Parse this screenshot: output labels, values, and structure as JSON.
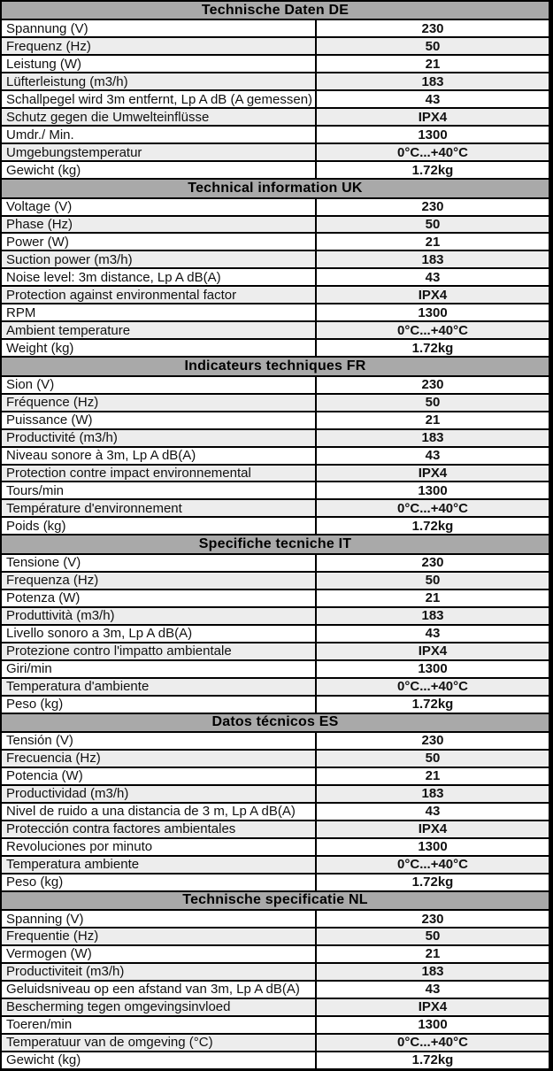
{
  "theme": {
    "header_bg": "#a9a9a9",
    "stripe_bg": "#ededed",
    "row_bg": "#ffffff",
    "border_color": "#000000"
  },
  "sections": [
    {
      "title": "Technische Daten DE",
      "rows": [
        {
          "label": "Spannung (V)",
          "value": "230"
        },
        {
          "label": "Frequenz (Hz)",
          "value": "50"
        },
        {
          "label": "Leistung (W)",
          "value": "21"
        },
        {
          "label": "Lüfterleistung (m3/h)",
          "value": "183"
        },
        {
          "label": "Schallpegel wird 3m entfernt, Lp A dB (A gemessen)",
          "value": "43"
        },
        {
          "label": "Schutz gegen die Umwelteinflüsse",
          "value": "IPX4"
        },
        {
          "label": "Umdr./ Min.",
          "value": "1300"
        },
        {
          "label": "Umgebungstemperatur",
          "value": "0°C...+40°C"
        },
        {
          "label": "Gewicht (kg)",
          "value": "1.72kg"
        }
      ]
    },
    {
      "title": "Technical information UK",
      "rows": [
        {
          "label": "Voltage (V)",
          "value": "230"
        },
        {
          "label": "Phase (Hz)",
          "value": "50"
        },
        {
          "label": "Power (W)",
          "value": "21"
        },
        {
          "label": "Suction power (m3/h)",
          "value": "183"
        },
        {
          "label": "Noise level: 3m distance, Lp A dB(A)",
          "value": "43"
        },
        {
          "label": "Protection against environmental factor",
          "value": "IPX4"
        },
        {
          "label": "RPM",
          "value": "1300"
        },
        {
          "label": "Ambient temperature",
          "value": "0°C...+40°C"
        },
        {
          "label": "Weight (kg)",
          "value": "1.72kg"
        }
      ]
    },
    {
      "title": "Indicateurs techniques FR",
      "rows": [
        {
          "label": "Sion (V)",
          "value": "230"
        },
        {
          "label": "Fréquence (Hz)",
          "value": "50"
        },
        {
          "label": "Puissance (W)",
          "value": "21"
        },
        {
          "label": "Productivité (m3/h)",
          "value": "183"
        },
        {
          "label": "Niveau sonore à 3m, Lp A dB(A)",
          "value": "43"
        },
        {
          "label": "Protection contre impact environnemental",
          "value": "IPX4"
        },
        {
          "label": "Tours/min",
          "value": "1300"
        },
        {
          "label": "Température d'environnement",
          "value": "0°C...+40°C"
        },
        {
          "label": "Poids (kg)",
          "value": "1.72kg"
        }
      ]
    },
    {
      "title": "Specifiche tecniche IT",
      "rows": [
        {
          "label": "Tensione (V)",
          "value": "230"
        },
        {
          "label": "Frequenza (Hz)",
          "value": "50"
        },
        {
          "label": "Potenza (W)",
          "value": "21"
        },
        {
          "label": "Produttività (m3/h)",
          "value": "183"
        },
        {
          "label": "Livello sonoro a 3m, Lp A dB(A)",
          "value": "43"
        },
        {
          "label": "Protezione contro l'impatto ambientale",
          "value": "IPX4"
        },
        {
          "label": "Giri/min",
          "value": "1300"
        },
        {
          "label": "Temperatura d'ambiente",
          "value": "0°C...+40°C"
        },
        {
          "label": "Peso (kg)",
          "value": "1.72kg"
        }
      ]
    },
    {
      "title": "Datos técnicos ES",
      "rows": [
        {
          "label": "Tensión (V)",
          "value": "230"
        },
        {
          "label": "Frecuencia (Hz)",
          "value": "50"
        },
        {
          "label": "Potencia (W)",
          "value": "21"
        },
        {
          "label": "Productividad (m3/h)",
          "value": "183"
        },
        {
          "label": "Nivel de ruido a una distancia de 3 m, Lp A dB(A)",
          "value": "43"
        },
        {
          "label": "Protección contra factores ambientales",
          "value": "IPX4"
        },
        {
          "label": "Revoluciones por minuto",
          "value": "1300"
        },
        {
          "label": "Temperatura ambiente",
          "value": "0°C...+40°C"
        },
        {
          "label": "Peso (kg)",
          "value": "1.72kg"
        }
      ]
    },
    {
      "title": "Technische specificatie NL",
      "rows": [
        {
          "label": "Spanning (V)",
          "value": "230"
        },
        {
          "label": "Frequentie (Hz)",
          "value": "50"
        },
        {
          "label": "Vermogen (W)",
          "value": "21"
        },
        {
          "label": "Productiviteit (m3/h)",
          "value": "183"
        },
        {
          "label": "Geluidsniveau op een afstand van 3m, Lp A dB(A)",
          "value": "43"
        },
        {
          "label": "Bescherming tegen omgevingsinvloed",
          "value": "IPX4"
        },
        {
          "label": "Toeren/min",
          "value": "1300"
        },
        {
          "label": "Temperatuur van de omgeving (°C)",
          "value": "0°C...+40°C"
        },
        {
          "label": "Gewicht (kg)",
          "value": "1.72kg"
        }
      ]
    }
  ]
}
